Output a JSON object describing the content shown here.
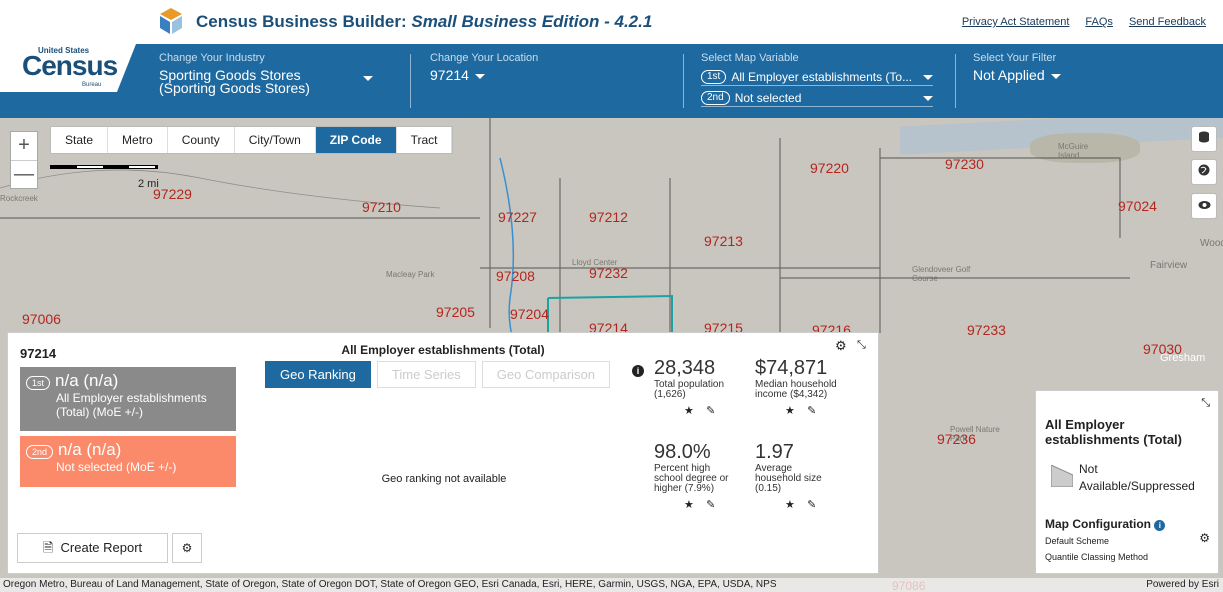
{
  "header": {
    "title_main": "Census Business Builder: ",
    "title_italic": "Small Business Edition - 4.2.1",
    "links": [
      "Privacy Act Statement",
      "FAQs",
      "Send Feedback"
    ]
  },
  "logo": {
    "top": "United States",
    "main": "Census",
    "bureau": "Bureau"
  },
  "selectors": {
    "industry": {
      "label": "Change Your Industry",
      "value_line1": "Sporting Goods Stores",
      "value_line2": "(Sporting Goods Stores)"
    },
    "location": {
      "label": "Change Your Location",
      "value": "97214"
    },
    "variable": {
      "label": "Select Map Variable",
      "first_tag": "1st",
      "first": "All Employer establishments (To...",
      "second_tag": "2nd",
      "second": "Not selected"
    },
    "filter": {
      "label": "Select Your Filter",
      "value": "Not Applied"
    }
  },
  "map": {
    "geo_tabs": [
      "State",
      "Metro",
      "County",
      "City/Town",
      "ZIP Code",
      "Tract"
    ],
    "active_tab": "ZIP Code",
    "scale_label": "2 mi",
    "zoom_in": "+",
    "zoom_out": "—",
    "zips": [
      "97229",
      "97210",
      "97227",
      "97212",
      "97220",
      "97230",
      "97024",
      "97213",
      "97208",
      "97232",
      "97006",
      "97205",
      "97204",
      "97214",
      "97215",
      "97216",
      "97233",
      "97030",
      "97236",
      "97086"
    ],
    "places": [
      "Rockcreek",
      "Macleay Park",
      "Lloyd Center",
      "Glendoveer Golf Course",
      "McGuire Island",
      "Fairview",
      "Gresham",
      "Powell Nature Park",
      "Wood"
    ],
    "attribution": "Oregon Metro, Bureau of Land Management, State of Oregon, State of Oregon DOT, State of Oregon GEO, Esri Canada, Esri, HERE, Garmin, USGS, NGA, EPA, USDA, NPS",
    "powered_by": "Powered by Esri"
  },
  "panel": {
    "zip": "97214",
    "card1": {
      "tag": "1st",
      "value": "n/a (n/a)",
      "line1": "All Employer establishments",
      "line2": "(Total) (MoE +/-)"
    },
    "card2": {
      "tag": "2nd",
      "value": "n/a (n/a)",
      "line1": "Not selected (MoE +/-)"
    },
    "title": "All Employer establishments (Total)",
    "tabs": [
      "Geo Ranking",
      "Time Series",
      "Geo Comparison"
    ],
    "active_tab": "Geo Ranking",
    "not_available": "Geo ranking not available",
    "stats": [
      {
        "value": "28,348",
        "label1": "Total population",
        "label2": "(1,626)",
        "label3": ""
      },
      {
        "value": "$74,871",
        "label1": "Median household",
        "label2": "income ($4,342)",
        "label3": ""
      },
      {
        "value": "98.0%",
        "label1": "Percent high",
        "label2": "school degree or",
        "label3": "higher (7.9%)"
      },
      {
        "value": "1.97",
        "label1": "Average",
        "label2": "household size",
        "label3": "(0.15)"
      }
    ],
    "create_report": "Create Report"
  },
  "legend": {
    "title_line1": "All Employer",
    "title_line2": "establishments (Total)",
    "item_line1": "Not",
    "item_line2": "Available/Suppressed",
    "config_title": "Map Configuration",
    "scheme": "Default Scheme",
    "method": "Quantile Classing Method"
  },
  "colors": {
    "brand_blue": "#1e6aa0",
    "card1": "#8a8a8a",
    "card2": "#fb8a6a",
    "zip_label": "#b3261e",
    "selected_zip_outline": "#1aa3a3"
  }
}
